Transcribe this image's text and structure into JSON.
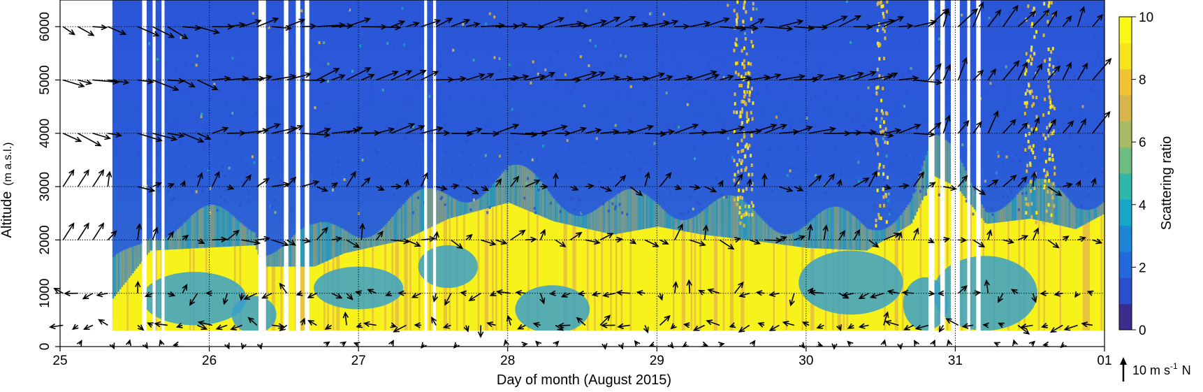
{
  "chart_data": {
    "type": "heatmap",
    "xlabel": "Day of month (August 2015)",
    "ylabel": "Altitude",
    "ylabel_unit": "(m a.s.l.)",
    "x_ticks": [
      "25",
      "26",
      "27",
      "28",
      "29",
      "30",
      "31",
      "01"
    ],
    "x_range": [
      25,
      32
    ],
    "ylim": [
      0,
      6500
    ],
    "y_ticks": [
      0,
      1000,
      2000,
      3000,
      4000,
      5000,
      6000
    ],
    "grid": true,
    "colorbar": {
      "label": "Scattering ratio",
      "ticks": [
        0,
        2,
        4,
        6,
        8,
        10
      ],
      "range": [
        0,
        10
      ],
      "colors": [
        "#3b2d8c",
        "#2c4fd0",
        "#2468de",
        "#1e86d6",
        "#17a5c8",
        "#2fb7a8",
        "#6cbc84",
        "#a6bb64",
        "#d6b54a",
        "#f2c334",
        "#f6e41e",
        "#f9f915"
      ]
    },
    "wind_reference": {
      "label": "10 m s",
      "superscript": "-1",
      "suffix": "N",
      "speed_ms": 10
    },
    "wind_levels_m": [
      400,
      1000,
      2000,
      3000,
      4000,
      5000,
      6000
    ],
    "surface_wind_row": true,
    "colors": {
      "low": "#2e58d4",
      "background_high": "#2a5bd6",
      "boundary_layer": "#f7f21b",
      "gap": "#ffffff"
    }
  }
}
